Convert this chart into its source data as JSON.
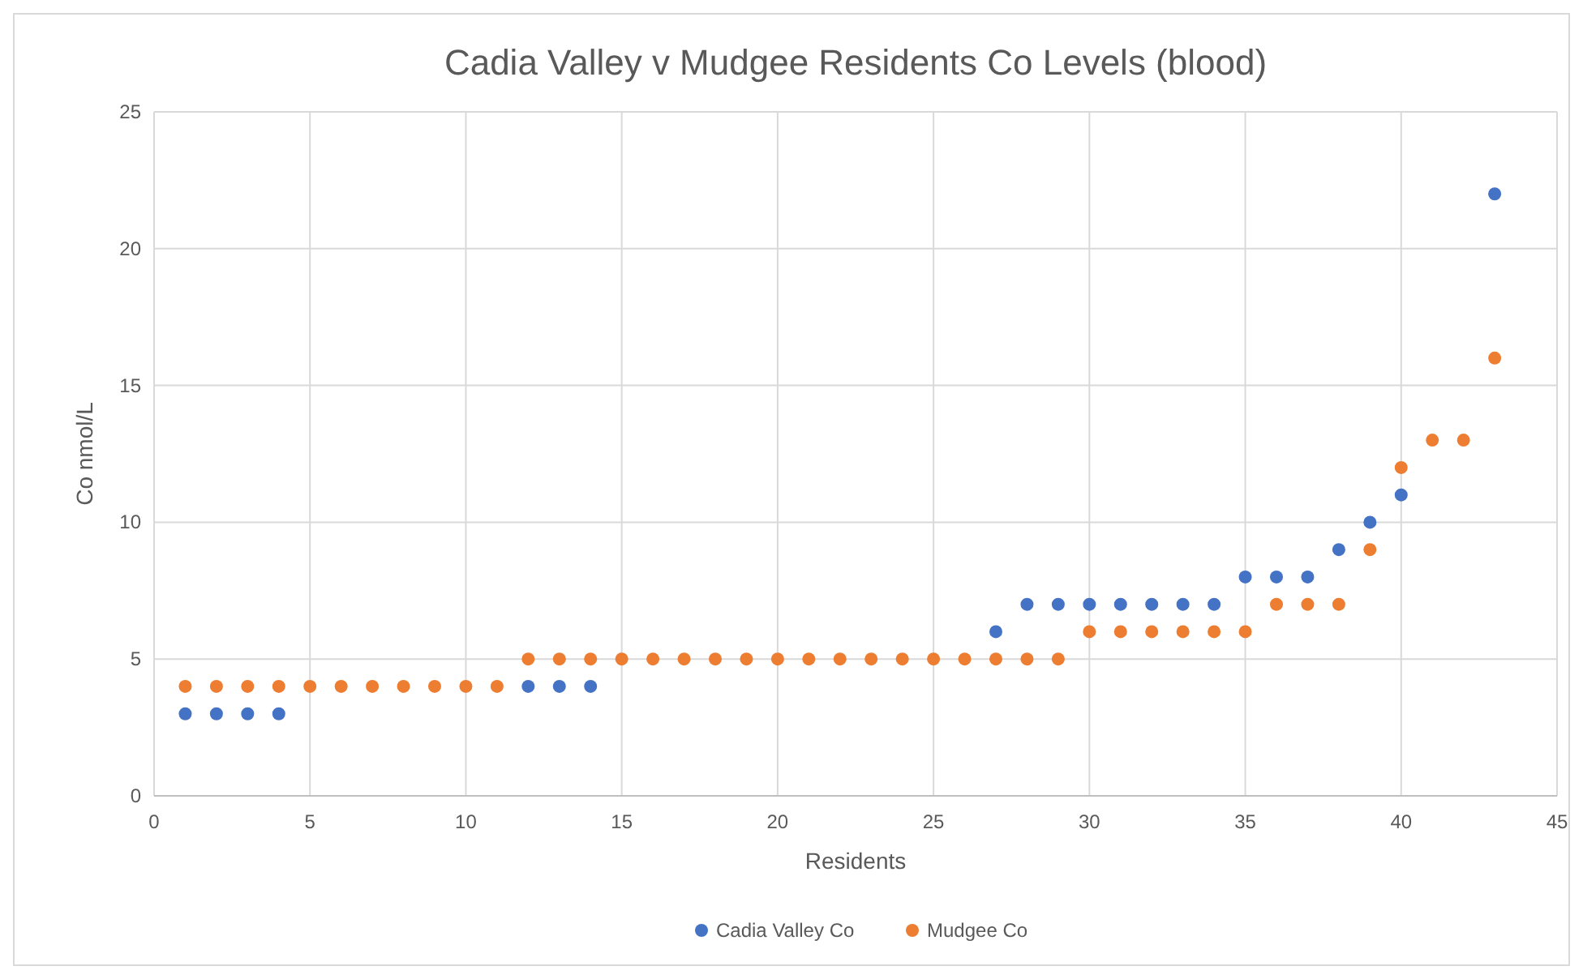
{
  "chart_data": {
    "type": "scatter",
    "title": "Cadia Valley v Mudgee Residents Co Levels (blood)",
    "xlabel": "Residents",
    "ylabel": "Co nmol/L",
    "x": [
      1,
      2,
      3,
      4,
      5,
      6,
      7,
      8,
      9,
      10,
      11,
      12,
      13,
      14,
      15,
      16,
      17,
      18,
      19,
      20,
      21,
      22,
      23,
      24,
      25,
      26,
      27,
      28,
      29,
      30,
      31,
      32,
      33,
      34,
      35,
      36,
      37,
      38,
      39,
      40,
      41,
      42,
      43
    ],
    "series": [
      {
        "name": "Cadia Valley Co",
        "color": "#4472c4",
        "values": [
          3,
          3,
          3,
          3,
          null,
          null,
          null,
          null,
          null,
          null,
          null,
          4,
          4,
          4,
          null,
          null,
          null,
          null,
          null,
          null,
          null,
          null,
          null,
          null,
          null,
          null,
          6,
          7,
          7,
          7,
          7,
          7,
          7,
          7,
          8,
          8,
          8,
          9,
          10,
          11,
          null,
          null,
          22
        ]
      },
      {
        "name": "Mudgee Co",
        "color": "#ed7d31",
        "values": [
          4,
          4,
          4,
          4,
          4,
          4,
          4,
          4,
          4,
          4,
          4,
          5,
          5,
          5,
          5,
          5,
          5,
          5,
          5,
          5,
          5,
          5,
          5,
          5,
          5,
          5,
          5,
          5,
          5,
          6,
          6,
          6,
          6,
          6,
          6,
          7,
          7,
          7,
          9,
          12,
          13,
          13,
          16
        ]
      }
    ],
    "xlim": [
      0,
      45
    ],
    "xticks": [
      0,
      5,
      10,
      15,
      20,
      25,
      30,
      35,
      40,
      45
    ],
    "ylim": [
      0,
      25
    ],
    "yticks": [
      0,
      5,
      10,
      15,
      20,
      25
    ],
    "grid": true,
    "legend": "bottom",
    "marker": "circle"
  }
}
